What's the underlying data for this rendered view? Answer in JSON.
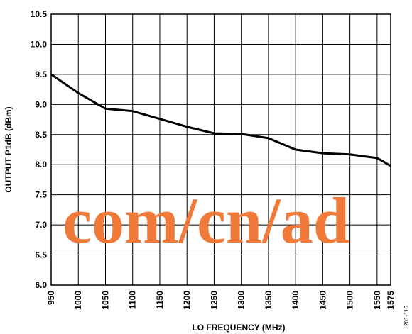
{
  "chart_data": {
    "type": "line",
    "x_label": "LO FREQUENCY (MHz)",
    "y_label": "OUTPUT P1dB (dBm)",
    "x": [
      950,
      1000,
      1050,
      1100,
      1150,
      1200,
      1250,
      1300,
      1350,
      1400,
      1450,
      1500,
      1550,
      1575
    ],
    "series": [
      {
        "color": "#000000",
        "values": [
          9.5,
          9.19,
          8.93,
          8.89,
          8.76,
          8.63,
          8.52,
          8.51,
          8.44,
          8.25,
          8.19,
          8.17,
          8.11,
          7.98
        ]
      }
    ],
    "xlim": [
      950,
      1575
    ],
    "xticks": [
      950,
      1000,
      1050,
      1100,
      1150,
      1200,
      1250,
      1300,
      1350,
      1400,
      1450,
      1500,
      1550,
      1575
    ],
    "ylim": [
      6,
      10.5
    ],
    "yticks": [
      {
        "value": 6,
        "label": "6.0"
      },
      {
        "value": 6.5,
        "label": "6.5"
      },
      {
        "value": 7,
        "label": "7.0"
      },
      {
        "value": 7.5,
        "label": "7.5"
      },
      {
        "value": 8,
        "label": "8.0"
      },
      {
        "value": 8.5,
        "label": "8.5"
      },
      {
        "value": 9,
        "label": "9.0"
      },
      {
        "value": 9.5,
        "label": "9.5"
      },
      {
        "value": 10,
        "label": "10.0"
      },
      {
        "value": 10.5,
        "label": "10.5"
      }
    ],
    "grid": true,
    "watermark": "com/cn/ad",
    "figure_id": "201-116"
  }
}
